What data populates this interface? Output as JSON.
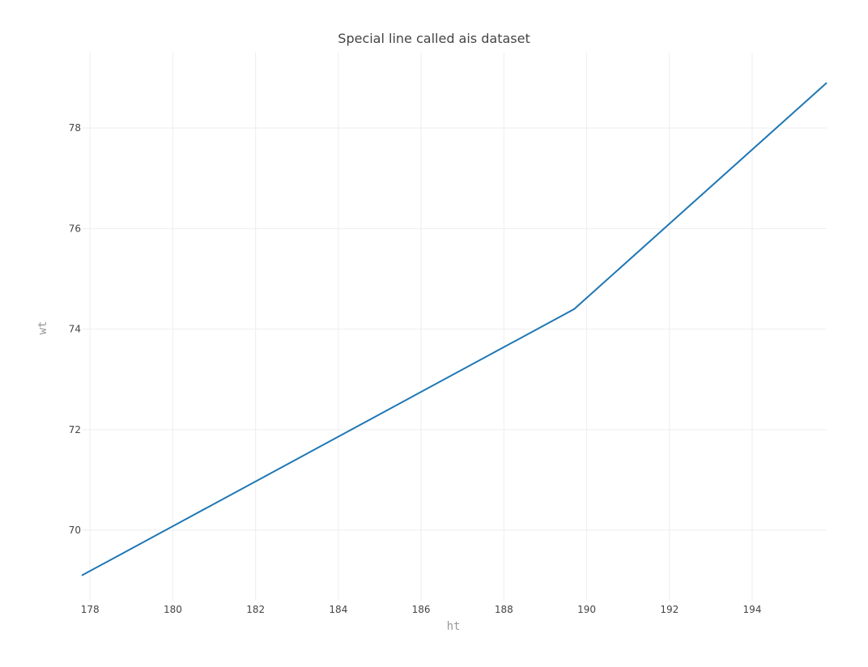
{
  "chart_data": {
    "type": "line",
    "title": "Special line called ais dataset",
    "xlabel": "ht",
    "ylabel": "wt",
    "x": [
      177.8,
      189.7,
      195.8
    ],
    "y": [
      69.1,
      74.4,
      78.9
    ],
    "xlim": [
      177.8,
      195.8
    ],
    "ylim": [
      68.6,
      79.5
    ],
    "xticks": [
      178,
      180,
      182,
      184,
      186,
      188,
      190,
      192,
      194
    ],
    "yticks": [
      70,
      72,
      74,
      76,
      78
    ],
    "grid": true,
    "legend": "none",
    "line_color": "#1f77b4"
  }
}
